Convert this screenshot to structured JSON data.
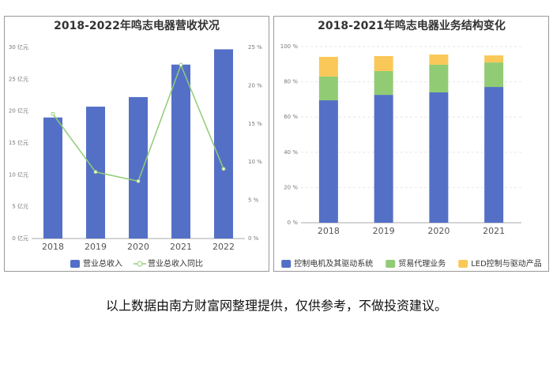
{
  "chart_data": [
    {
      "type": "combo",
      "title": "2018-2022年鸣志电器营收状况",
      "categories": [
        "2018",
        "2019",
        "2020",
        "2021",
        "2022"
      ],
      "series": [
        {
          "name": "营业总收入",
          "color": "#5470c6",
          "values": [
            19.0,
            20.7,
            22.2,
            27.3,
            29.7
          ]
        },
        {
          "name": "营业总收入同比",
          "color": "#91cc75",
          "axis": "y2",
          "values": [
            16.3,
            8.7,
            7.5,
            22.7,
            9.1
          ]
        }
      ],
      "ylim": [
        0,
        30
      ],
      "yticks": [
        {
          "value": 0,
          "label": "0 亿元"
        },
        {
          "value": 5,
          "label": "5 亿元"
        },
        {
          "value": 10,
          "label": "10 亿元"
        },
        {
          "value": 15,
          "label": "15 亿元"
        },
        {
          "value": 20,
          "label": "20 亿元"
        },
        {
          "value": 25,
          "label": "25 亿元"
        },
        {
          "value": 30,
          "label": "30 亿元"
        }
      ],
      "y2lim": [
        0,
        25
      ],
      "y2ticks": [
        {
          "value": 0,
          "label": "0 %"
        },
        {
          "value": 5,
          "label": "5 %"
        },
        {
          "value": 10,
          "label": "10 %"
        },
        {
          "value": 15,
          "label": "15 %"
        },
        {
          "value": 20,
          "label": "20 %"
        },
        {
          "value": 25,
          "label": "25 %"
        }
      ],
      "grid": false
    },
    {
      "type": "stacked_bar",
      "title": "2018-2021年鸣志电器业务结构变化",
      "categories": [
        "2018",
        "2019",
        "2020",
        "2021"
      ],
      "series": [
        {
          "name": "控制电机及其驱动系统",
          "color": "#5470c6",
          "values": [
            69.5,
            72.6,
            74.0,
            77.1
          ]
        },
        {
          "name": "贸易代理业务",
          "color": "#91cc75",
          "values": [
            13.5,
            13.5,
            15.7,
            13.9
          ]
        },
        {
          "name": "LED控制与驱动产品",
          "color": "#fac858",
          "values": [
            11.2,
            8.5,
            5.8,
            4.0
          ]
        }
      ],
      "ylim": [
        0,
        100
      ],
      "yticks": [
        {
          "value": 0,
          "label": "0 %"
        },
        {
          "value": 20,
          "label": "20 %"
        },
        {
          "value": 40,
          "label": "40 %"
        },
        {
          "value": 60,
          "label": "60 %"
        },
        {
          "value": 80,
          "label": "80 %"
        },
        {
          "value": 100,
          "label": "100 %"
        }
      ],
      "grid": true
    }
  ],
  "caption": "以上数据由南方财富网整理提供，仅供参考，不做投资建议。"
}
